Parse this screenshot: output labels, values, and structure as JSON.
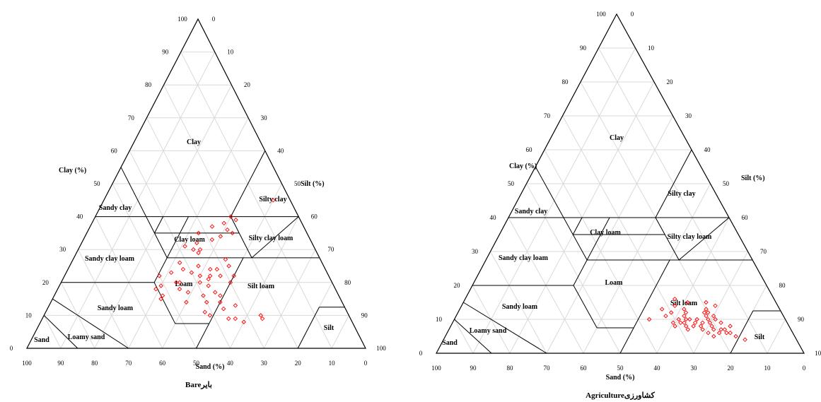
{
  "chart_data": [
    {
      "type": "scatter",
      "caption": "Bareبایر",
      "axes": {
        "left": "Clay (%)",
        "right": "Silt (%)",
        "bottom": "Sand (%)"
      },
      "ticks": [
        "0",
        "10",
        "20",
        "30",
        "40",
        "50",
        "60",
        "70",
        "80",
        "90",
        "100"
      ],
      "textures": [
        "Clay",
        "Silty clay",
        "Sandy clay",
        "Clay loam",
        "Silty clay loam",
        "Sandy clay loam",
        "Loam",
        "Silt loam",
        "Sandy loam",
        "Loamy sand",
        "Sand",
        "Silt"
      ],
      "points": [
        [
          45,
          50,
          5
        ],
        [
          25,
          47,
          28
        ],
        [
          24,
          44,
          32
        ],
        [
          27,
          45,
          28
        ],
        [
          24,
          42,
          34
        ],
        [
          22,
          46,
          32
        ],
        [
          22,
          43,
          35
        ],
        [
          33,
          38,
          29
        ],
        [
          35,
          33,
          32
        ],
        [
          30,
          36,
          34
        ],
        [
          32,
          34,
          34
        ],
        [
          30,
          34,
          36
        ],
        [
          31,
          31,
          38
        ],
        [
          29,
          36,
          35
        ],
        [
          40,
          40,
          20
        ],
        [
          39,
          42,
          19
        ],
        [
          38,
          39,
          23
        ],
        [
          36,
          41,
          23
        ],
        [
          35,
          43,
          22
        ],
        [
          34,
          40,
          26
        ],
        [
          37,
          36,
          27
        ],
        [
          25,
          38,
          37
        ],
        [
          22,
          40,
          38
        ],
        [
          24,
          34,
          42
        ],
        [
          23,
          37,
          40
        ],
        [
          21,
          43,
          36
        ],
        [
          20,
          41,
          39
        ],
        [
          23,
          31,
          46
        ],
        [
          20,
          34,
          46
        ],
        [
          22,
          28,
          50
        ],
        [
          18,
          36,
          46
        ],
        [
          19,
          30,
          51
        ],
        [
          17,
          39,
          44
        ],
        [
          15,
          32,
          53
        ],
        [
          14,
          40,
          46
        ],
        [
          16,
          44,
          40
        ],
        [
          19,
          44,
          37
        ],
        [
          16,
          49,
          35
        ],
        [
          14,
          50,
          36
        ],
        [
          14,
          46,
          40
        ],
        [
          12,
          52,
          36
        ],
        [
          11,
          47,
          42
        ],
        [
          13,
          55,
          32
        ],
        [
          10,
          49,
          41
        ],
        [
          9,
          55,
          36
        ],
        [
          8,
          60,
          32
        ],
        [
          10,
          64,
          26
        ],
        [
          9,
          65,
          26
        ],
        [
          9,
          57,
          34
        ],
        [
          20,
          35,
          45
        ],
        [
          18,
          29,
          53
        ],
        [
          16,
          32,
          52
        ],
        [
          17,
          47,
          36
        ],
        [
          20,
          50,
          30
        ],
        [
          22,
          50,
          28
        ],
        [
          26,
          32,
          42
        ]
      ]
    },
    {
      "type": "scatter",
      "caption": "Agricultureکشاورزی",
      "axes": {
        "left": "Clay (%)",
        "right": "Silt (%)",
        "bottom": "Sand (%)"
      },
      "ticks": [
        "0",
        "10",
        "20",
        "30",
        "40",
        "50",
        "60",
        "70",
        "80",
        "90",
        "100"
      ],
      "textures": [
        "Clay",
        "Silty clay",
        "Sandy clay",
        "Clay loam",
        "Silty clay loam",
        "Sandy clay loam",
        "Loam",
        "Silt loam",
        "Sandy loam",
        "Loamy sand",
        "Sand",
        "Silt"
      ],
      "points": [
        [
          4,
          82,
          14
        ],
        [
          5,
          79,
          16
        ],
        [
          6,
          76,
          18
        ],
        [
          7,
          72,
          21
        ],
        [
          8,
          71,
          21
        ],
        [
          9,
          70,
          21
        ],
        [
          9,
          68,
          23
        ],
        [
          10,
          66,
          24
        ],
        [
          10,
          64,
          26
        ],
        [
          9,
          63,
          28
        ],
        [
          8,
          66,
          26
        ],
        [
          7,
          69,
          24
        ],
        [
          6,
          71,
          23
        ],
        [
          5,
          73,
          22
        ],
        [
          6,
          74,
          20
        ],
        [
          7,
          74,
          19
        ],
        [
          10,
          71,
          19
        ],
        [
          11,
          68,
          21
        ],
        [
          12,
          67,
          21
        ],
        [
          13,
          67,
          20
        ],
        [
          10,
          63,
          27
        ],
        [
          9,
          62,
          29
        ],
        [
          8,
          64,
          28
        ],
        [
          7,
          65,
          28
        ],
        [
          10,
          61,
          29
        ],
        [
          9,
          60,
          31
        ],
        [
          8,
          61,
          31
        ],
        [
          11,
          62,
          27
        ],
        [
          12,
          62,
          26
        ],
        [
          12,
          58,
          30
        ],
        [
          14,
          58,
          28
        ],
        [
          16,
          57,
          27
        ],
        [
          13,
          55,
          32
        ],
        [
          10,
          53,
          37
        ],
        [
          11,
          57,
          32
        ],
        [
          12,
          68,
          20
        ],
        [
          14,
          69,
          17
        ],
        [
          15,
          66,
          19
        ],
        [
          9,
          73,
          18
        ],
        [
          8,
          76,
          16
        ],
        [
          7,
          75,
          18
        ],
        [
          6,
          77,
          17
        ],
        [
          11,
          70,
          19
        ],
        [
          10,
          69,
          21
        ],
        [
          9,
          66,
          25
        ],
        [
          8,
          68,
          24
        ],
        [
          13,
          61,
          26
        ],
        [
          15,
          61,
          24
        ]
      ]
    }
  ]
}
